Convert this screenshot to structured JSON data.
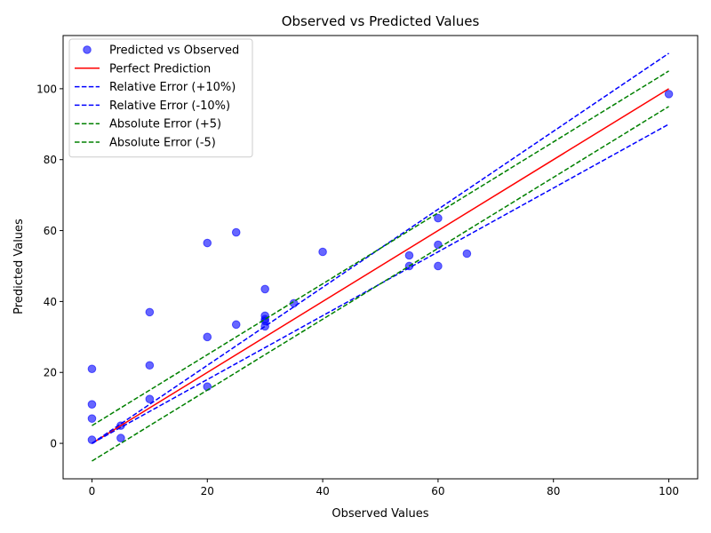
{
  "chart_data": {
    "type": "scatter",
    "title": "Observed vs Predicted Values",
    "xlabel": "Observed Values",
    "ylabel": "Predicted Values",
    "xlim": [
      -5,
      105
    ],
    "ylim": [
      -10,
      115
    ],
    "xticks": [
      0,
      20,
      40,
      60,
      80,
      100
    ],
    "yticks": [
      0,
      20,
      40,
      60,
      80,
      100
    ],
    "grid": false,
    "legend_position": "upper-left",
    "points": {
      "name": "Predicted vs Observed",
      "color": "#0000ff",
      "x": [
        0,
        0,
        0,
        0,
        5,
        5,
        10,
        10,
        10,
        20,
        20,
        20,
        25,
        25,
        30,
        30,
        30,
        30,
        30,
        35,
        40,
        55,
        55,
        60,
        60,
        60,
        65,
        100
      ],
      "y": [
        1,
        7,
        11,
        21,
        5,
        1.5,
        12.5,
        22,
        37,
        16,
        30,
        56.5,
        33.5,
        59.5,
        33,
        34.5,
        36,
        43.5,
        35,
        39.5,
        54,
        50,
        53,
        50,
        56,
        63.5,
        53.5,
        98.5
      ]
    },
    "lines": [
      {
        "name": "Perfect Prediction",
        "color": "#ff0000",
        "dash": "solid",
        "x": [
          0,
          100
        ],
        "y": [
          0,
          100
        ]
      },
      {
        "name": "Relative Error (+10%)",
        "color": "#0000ff",
        "dash": "dashed",
        "x": [
          0,
          100
        ],
        "y": [
          0,
          110
        ]
      },
      {
        "name": "Relative Error (-10%)",
        "color": "#0000ff",
        "dash": "dashed",
        "x": [
          0,
          100
        ],
        "y": [
          0,
          90
        ]
      },
      {
        "name": "Absolute Error (+5)",
        "color": "#008000",
        "dash": "dashed",
        "x": [
          0,
          100
        ],
        "y": [
          5,
          105
        ]
      },
      {
        "name": "Absolute Error (-5)",
        "color": "#008000",
        "dash": "dashed",
        "x": [
          0,
          100
        ],
        "y": [
          -5,
          95
        ]
      }
    ]
  }
}
